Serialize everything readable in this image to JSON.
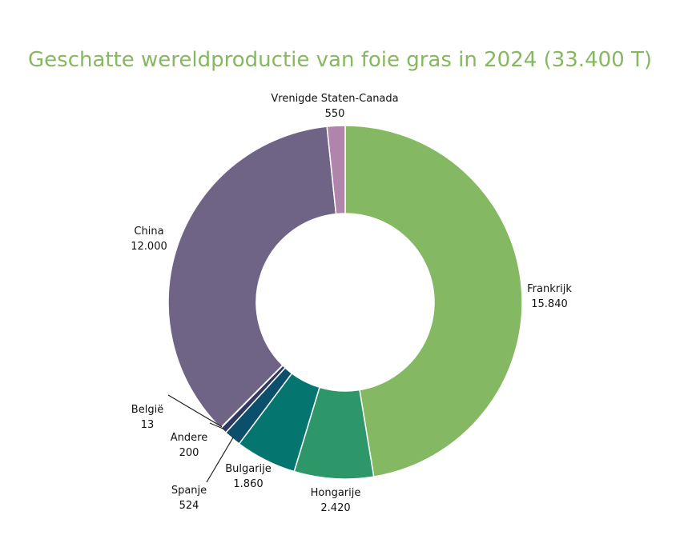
{
  "chart_data": {
    "type": "pie",
    "donut": true,
    "title": "Geschatte wereldproductie van foie gras in 2024 (33.400 T)",
    "slices": [
      {
        "label": "Frankrijk",
        "display_value": "15.840",
        "value": 15840,
        "color": "#84b862"
      },
      {
        "label": "Hongarije",
        "display_value": "2.420",
        "value": 2420,
        "color": "#2e9769"
      },
      {
        "label": "Bulgarije",
        "display_value": "1.860",
        "value": 1860,
        "color": "#04756f"
      },
      {
        "label": "Spanje",
        "display_value": "524",
        "value": 524,
        "color": "#0b4f6a"
      },
      {
        "label": "Andere",
        "display_value": "200",
        "value": 200,
        "color": "#2f3a60"
      },
      {
        "label": "België",
        "display_value": "13",
        "value": 13,
        "color": "#3c3355"
      },
      {
        "label": "China",
        "display_value": "12.000",
        "value": 12000,
        "color": "#6f6386"
      },
      {
        "label": "Vrenigde Staten-Canada",
        "display_value": "550",
        "value": 550,
        "color": "#b184ab"
      }
    ]
  }
}
